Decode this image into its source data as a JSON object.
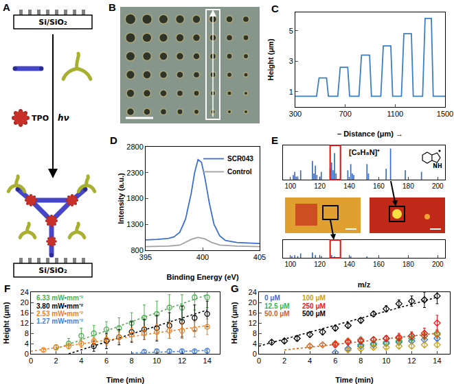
{
  "diagrams": {
    "A": {
      "label": "A",
      "substrate_top": "Si/SiO₂",
      "substrate_bottom": "Si/SiO₂",
      "initiator": "TPO",
      "light": "hν"
    },
    "B": {
      "label": "B"
    },
    "E": {
      "structure_label": "NH"
    }
  },
  "chart_data": [
    {
      "panel": "C",
      "type": "line",
      "x_label": "– Distance (μm) →",
      "y_label": "Height (μm)",
      "color": "#3a7fc4",
      "line_style": "solid",
      "grid": false,
      "x": [
        300,
        470,
        490,
        550,
        565,
        640,
        660,
        720,
        735,
        810,
        830,
        895,
        910,
        985,
        1005,
        1065,
        1080,
        1150,
        1170,
        1230,
        1245,
        1320,
        1340,
        1390,
        1405,
        1500
      ],
      "values": [
        0.7,
        0.7,
        1.9,
        1.9,
        0.7,
        0.7,
        2.6,
        2.6,
        0.7,
        0.7,
        3.4,
        3.4,
        0.7,
        0.7,
        4.0,
        4.0,
        0.7,
        0.7,
        4.8,
        4.8,
        0.7,
        0.7,
        5.8,
        5.8,
        0.7,
        0.7
      ],
      "xlim": [
        300,
        1500
      ],
      "ylim": [
        0,
        6.2
      ],
      "xticks": [
        300,
        700,
        1100,
        1500
      ],
      "yticks": [
        1,
        3,
        5
      ]
    },
    {
      "panel": "D",
      "type": "line",
      "x_label": "Binding Energy (eV)",
      "y_label": "Intensity (a.u.)",
      "line_style": "solid",
      "grid": false,
      "legend": "upper right",
      "series": [
        {
          "name": "SCR043",
          "color": "#3a6fd0",
          "x": [
            395,
            396,
            397,
            397.5,
            398,
            398.5,
            399,
            399.3,
            399.6,
            399.9,
            400.2,
            400.6,
            401,
            401.5,
            402,
            403,
            404,
            405
          ],
          "values": [
            1000,
            1010,
            1030,
            1060,
            1150,
            1400,
            1900,
            2300,
            2550,
            2500,
            2200,
            1700,
            1300,
            1080,
            990,
            950,
            940,
            930
          ]
        },
        {
          "name": "Control",
          "color": "#a0a0a0",
          "x": [
            395,
            397,
            398,
            398.5,
            399,
            399.6,
            400.2,
            400.8,
            401.5,
            403,
            405
          ],
          "values": [
            870,
            880,
            900,
            950,
            1010,
            1050,
            1020,
            950,
            900,
            880,
            870
          ]
        }
      ],
      "xlim": [
        395,
        405
      ],
      "ylim": [
        800,
        2800
      ],
      "xticks": [
        395,
        400,
        405
      ],
      "yticks": [
        800,
        1300,
        1800,
        2300,
        2800
      ]
    },
    {
      "panel": "E",
      "type": "bar",
      "color": "#3a6fc4",
      "grid": false,
      "tick_labels": "x",
      "annotations": [
        "[C₉H₈N]⁺"
      ],
      "x": [
        102,
        103,
        104,
        105,
        107,
        115,
        116,
        117,
        118,
        120,
        121,
        127,
        128,
        129,
        130,
        131,
        139,
        141,
        142,
        143,
        152,
        153,
        165,
        168,
        178,
        189
      ],
      "values": [
        0.15,
        0.25,
        0.1,
        0.1,
        0.3,
        0.6,
        0.2,
        0.45,
        0.15,
        0.1,
        0.25,
        0.35,
        0.55,
        0.3,
        0.85,
        0.2,
        0.3,
        0.5,
        0.2,
        0.15,
        0.5,
        0.2,
        0.35,
        1.0,
        0.3,
        0.25
      ],
      "highlight": [
        127,
        134
      ],
      "xlim": [
        95,
        205
      ],
      "ylim": [
        0,
        1.1
      ],
      "xticks": [
        100,
        120,
        140,
        160,
        180,
        200
      ]
    },
    {
      "type": "bar",
      "x_label": "m/z",
      "color": "#3a6fc4",
      "grid": false,
      "tick_labels": "x",
      "x": [
        101,
        103,
        105,
        107,
        115,
        117,
        121,
        128,
        130,
        141,
        152
      ],
      "values": [
        0.1,
        0.15,
        0.1,
        0.25,
        0.3,
        0.15,
        0.1,
        0.15,
        0.08,
        0.1,
        0.08
      ],
      "highlight": [
        127,
        134
      ],
      "xlim": [
        95,
        205
      ],
      "ylim": [
        0,
        1
      ],
      "xticks": [
        100,
        120,
        140,
        160,
        180,
        200
      ]
    },
    {
      "panel": "F",
      "type": "scatter",
      "x_label": "Time (min)",
      "y_label": "Height (μm)",
      "marker": "circle",
      "line_style": "dotted",
      "grid": false,
      "legend": "upper left",
      "series": [
        {
          "name": "6.33 mW•mm⁻²",
          "color": "#4caf50",
          "x": [
            2,
            3,
            4,
            5,
            6,
            7,
            8,
            9,
            10,
            11,
            12,
            13,
            14
          ],
          "values": [
            2.5,
            4,
            7,
            8,
            9.5,
            10,
            12,
            14,
            15.5,
            18,
            18,
            22,
            22
          ],
          "errors": [
            1,
            2,
            3,
            3,
            3,
            4,
            4,
            5,
            5,
            5,
            5,
            5,
            4
          ],
          "fit": {
            "x": [
              2,
              14
            ],
            "values": [
              2,
              23
            ]
          }
        },
        {
          "name": "3.80 mW•mm⁻²",
          "color": "#000000",
          "x": [
            5,
            6,
            7,
            8,
            9,
            10,
            11,
            12,
            13,
            14
          ],
          "values": [
            3,
            5,
            6.5,
            8.5,
            9.5,
            10,
            11,
            12.5,
            14,
            15.5
          ],
          "errors": [
            2,
            3,
            3,
            4,
            4,
            5,
            5,
            6,
            5,
            5
          ],
          "fit": {
            "x": [
              3,
              14
            ],
            "values": [
              0,
              17
            ]
          }
        },
        {
          "name": "2.53 mW•mm⁻²",
          "color": "#f08020",
          "x": [
            1,
            2,
            3,
            4,
            5,
            6,
            7,
            8,
            9,
            10,
            11,
            12,
            13,
            14
          ],
          "values": [
            1.5,
            2.5,
            3,
            4,
            5,
            5.5,
            6.5,
            7.5,
            8,
            8.5,
            9,
            9,
            9.5,
            10.5
          ],
          "errors": [
            0.5,
            1,
            1,
            1.5,
            1.5,
            2,
            2,
            2.5,
            2.5,
            3,
            3,
            3,
            3,
            3
          ],
          "fit": {
            "x": [
              0,
              14
            ],
            "values": [
              1,
              11
            ]
          }
        },
        {
          "name": "1.27 mW•mm⁻²",
          "color": "#4a7fd0",
          "x": [
            9,
            10,
            11,
            12,
            13,
            14
          ],
          "values": [
            0.8,
            1,
            1,
            1,
            1,
            1.2
          ],
          "errors": [
            0.5,
            0.5,
            0.6,
            0.6,
            0.6,
            0.7
          ],
          "fit": {
            "x": [
              8,
              14
            ],
            "values": [
              0.3,
              1.3
            ]
          }
        }
      ],
      "xlim": [
        0,
        15
      ],
      "ylim": [
        0,
        24
      ],
      "xticks": [
        0,
        2,
        4,
        6,
        8,
        10,
        12,
        14
      ],
      "yticks": [
        0,
        4,
        8,
        12,
        16,
        20,
        24
      ]
    },
    {
      "panel": "G",
      "type": "scatter",
      "x_label": "Time (min)",
      "y_label": "Height (μm)",
      "marker": "diamond",
      "line_style": "dotted",
      "grid": false,
      "legend": "upper left",
      "series": [
        {
          "name": "0 μM",
          "color": "#3a6fd0",
          "x": [
            6,
            7,
            8,
            9,
            10,
            11,
            12,
            13,
            14
          ],
          "values": [
            0.5,
            2,
            3,
            3.5,
            4,
            4.5,
            5,
            5.5,
            6
          ],
          "errors": [
            0.3,
            0.5,
            0.5,
            0.8,
            0.8,
            1,
            1,
            1,
            1
          ]
        },
        {
          "name": "12.5 μM",
          "color": "#3cb043",
          "x": [
            8,
            9,
            10,
            11,
            12,
            13,
            14
          ],
          "values": [
            3.5,
            4,
            4.5,
            5,
            6,
            7,
            8
          ],
          "errors": [
            1,
            1,
            1,
            1,
            1.5,
            1.5,
            1.5
          ]
        },
        {
          "name": "50.0 μM",
          "color": "#c8641e",
          "x": [
            4,
            5,
            6,
            7,
            8,
            9,
            10,
            11,
            12,
            13,
            14
          ],
          "values": [
            3,
            3.5,
            4,
            5,
            5.5,
            5.5,
            6,
            6,
            7,
            7,
            7.5
          ],
          "errors": [
            0.5,
            0.5,
            0.8,
            1,
            1,
            1,
            1,
            1,
            1.5,
            1.5,
            1.5
          ],
          "fit": {
            "x": [
              2,
              14
            ],
            "values": [
              1.5,
              8
            ]
          }
        },
        {
          "name": "100 μM",
          "color": "#c8a020",
          "x": [
            7,
            8,
            9,
            10,
            11,
            12,
            13,
            14
          ],
          "values": [
            1.5,
            2,
            2.5,
            2.5,
            3,
            3,
            3.5,
            3.5
          ],
          "errors": [
            0.5,
            0.5,
            0.5,
            0.5,
            0.8,
            0.8,
            0.8,
            0.8
          ]
        },
        {
          "name": "250 μM",
          "color": "#e02020",
          "x": [
            6,
            7,
            8,
            9,
            10,
            11,
            12,
            13,
            14
          ],
          "values": [
            3.5,
            4.5,
            5,
            5.5,
            6,
            6.5,
            7,
            8,
            12
          ],
          "errors": [
            1,
            1,
            1,
            1,
            1,
            1.5,
            1.5,
            2,
            3
          ]
        },
        {
          "name": "500 μM",
          "color": "#000000",
          "x": [
            1,
            2,
            3,
            4,
            5,
            6,
            7,
            8,
            9,
            10,
            11,
            12,
            13,
            14
          ],
          "values": [
            4.5,
            5,
            6,
            7.5,
            8.5,
            10,
            11,
            13,
            15.5,
            17.5,
            19.5,
            20.5,
            21,
            22.5
          ],
          "errors": [
            0.8,
            0.8,
            1,
            1,
            1,
            1,
            1,
            1,
            1,
            1.2,
            1.5,
            2,
            3,
            3
          ],
          "fit": {
            "x": [
              0,
              14
            ],
            "values": [
              3,
              22
            ]
          }
        }
      ],
      "xlim": [
        0,
        15
      ],
      "ylim": [
        0,
        24
      ],
      "xticks": [
        0,
        2,
        4,
        6,
        8,
        10,
        12,
        14
      ],
      "yticks": [
        0,
        4,
        8,
        12,
        16,
        20,
        24
      ]
    }
  ]
}
